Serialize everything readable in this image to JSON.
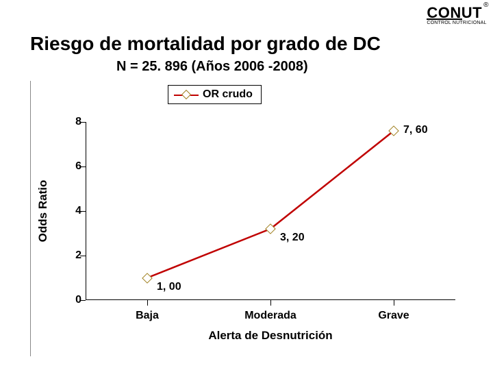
{
  "logo": {
    "brand": "CONUT",
    "registered": "®",
    "tagline": "CONTROL NUTRICIONAL"
  },
  "title": "Riesgo de mortalidad por grado de DC",
  "subtitle": "N = 25. 896 (Años 2006 -2008)",
  "chart": {
    "type": "line",
    "legend_label": "OR crudo",
    "series_color": "#c00000",
    "marker_border": "#a08020",
    "ylabel": "Odds Ratio",
    "xlabel": "Alerta  de Desnutrición",
    "ylim": [
      0,
      8
    ],
    "ytick_step": 2,
    "yticks": [
      0,
      2,
      4,
      6,
      8
    ],
    "categories": [
      "Baja",
      "Moderada",
      "Grave"
    ],
    "values": [
      1.0,
      3.2,
      7.6
    ],
    "data_labels": [
      "1, 00",
      "3, 20",
      "7, 60"
    ],
    "background_color": "#ffffff",
    "axis_color": "#000000",
    "tick_fontsize": 16,
    "label_fontsize": 17,
    "marker_size": 11,
    "line_width": 2.5
  }
}
